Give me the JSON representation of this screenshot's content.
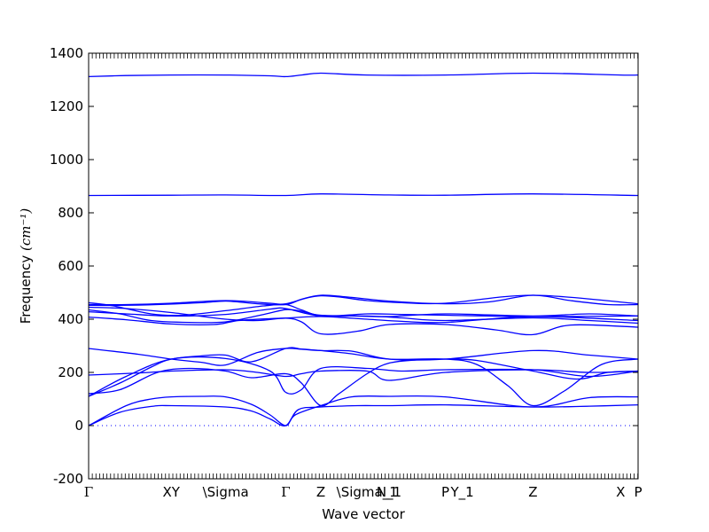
{
  "chart_data": {
    "type": "line",
    "xlabel": "Wave vector",
    "ylabel": "Frequency",
    "ylabel_unit": "(cm⁻¹)",
    "ylim": [
      -200,
      1400
    ],
    "xlim": [
      0,
      8.78
    ],
    "yticks": [
      -200,
      0,
      200,
      400,
      600,
      800,
      1000,
      1200,
      1400
    ],
    "grid": false,
    "legend": "none",
    "line_color": "#0000ff",
    "high_symmetry_points": [
      {
        "label": "Γ",
        "x": 0.0
      },
      {
        "label": "XY",
        "x": 1.32
      },
      {
        "label": "\\Sigma",
        "x": 2.19
      },
      {
        "label": "Γ",
        "x": 3.15
      },
      {
        "label": "Z",
        "x": 3.71
      },
      {
        "label": "\\Sigma_1",
        "x": 4.45
      },
      {
        "label": "N_1",
        "x": 4.8
      },
      {
        "label": "P",
        "x": 5.7
      },
      {
        "label": "Y_1",
        "x": 5.97
      },
      {
        "label": "Z",
        "x": 7.1
      },
      {
        "label": "X",
        "x": 8.5
      },
      {
        "label": "P",
        "x": 8.78
      }
    ],
    "zero_line": {
      "y": 0,
      "style": "dotted"
    },
    "series": [
      {
        "x": [
          0,
          0.6,
          1.3,
          2.2,
          2.9,
          3.15,
          3.4,
          3.71,
          4.45,
          5.7,
          7.1,
          8.5,
          8.78
        ],
        "y": [
          1312,
          1316,
          1318,
          1318,
          1315,
          1312,
          1318,
          1325,
          1318,
          1318,
          1325,
          1318,
          1318
        ]
      },
      {
        "x": [
          0,
          1.32,
          2.19,
          3.15,
          3.71,
          4.8,
          5.7,
          7.1,
          8.78
        ],
        "y": [
          865,
          866,
          867,
          865,
          871,
          867,
          866,
          871,
          865
        ]
      },
      {
        "x": [
          0,
          0.5,
          1.1,
          1.8,
          2.2,
          2.7,
          3.15,
          3.4,
          3.71,
          4.2,
          4.8,
          5.7,
          6.4,
          7.1,
          7.7,
          8.3,
          8.78
        ],
        "y": [
          452,
          452,
          455,
          462,
          468,
          458,
          455,
          475,
          490,
          482,
          468,
          458,
          465,
          490,
          470,
          455,
          455
        ]
      },
      {
        "x": [
          0,
          0.4,
          1.0,
          1.5,
          2.19,
          2.8,
          3.15,
          3.4,
          3.71,
          4.2,
          4.8,
          5.7,
          7.1,
          8.0,
          8.78
        ],
        "y": [
          462,
          450,
          420,
          415,
          432,
          450,
          455,
          435,
          412,
          412,
          410,
          420,
          412,
          420,
          412
        ]
      },
      {
        "x": [
          0,
          0.5,
          1.0,
          1.6,
          2.19,
          2.8,
          3.15,
          3.4,
          3.71,
          4.45,
          5.0,
          5.7,
          7.1,
          8.0,
          8.78
        ],
        "y": [
          435,
          420,
          395,
          388,
          390,
          418,
          436,
          430,
          415,
          412,
          405,
          395,
          405,
          395,
          385
        ]
      },
      {
        "x": [
          0,
          0.6,
          1.32,
          2.0,
          2.4,
          2.9,
          3.15,
          3.71,
          4.45,
          5.0,
          5.7,
          7.1,
          8.78
        ],
        "y": [
          408,
          398,
          382,
          380,
          395,
          402,
          404,
          410,
          400,
          392,
          388,
          410,
          395
        ]
      },
      {
        "x": [
          0,
          0.6,
          1.32,
          2.19,
          2.7,
          3.15,
          3.4,
          3.71,
          4.3,
          4.8,
          5.7,
          6.5,
          7.1,
          7.7,
          8.78
        ],
        "y": [
          445,
          440,
          425,
          400,
          395,
          404,
          390,
          345,
          355,
          380,
          380,
          360,
          342,
          378,
          370
        ]
      },
      {
        "x": [
          0,
          0.8,
          1.32,
          1.8,
          2.19,
          2.7,
          3.15,
          3.4,
          3.71,
          4.2,
          4.8,
          5.7,
          7.1,
          8.0,
          8.78
        ],
        "y": [
          290,
          268,
          250,
          238,
          228,
          275,
          290,
          287,
          282,
          280,
          250,
          250,
          282,
          265,
          250
        ]
      },
      {
        "x": [
          0,
          0.5,
          1.0,
          1.32,
          1.8,
          2.19,
          2.6,
          3.15,
          3.4,
          3.71,
          4.2,
          4.8,
          5.7,
          6.2,
          6.7,
          7.1,
          7.6,
          8.2,
          8.78
        ],
        "y": [
          110,
          160,
          220,
          250,
          262,
          265,
          240,
          290,
          288,
          282,
          270,
          250,
          250,
          230,
          150,
          75,
          130,
          230,
          250
        ]
      },
      {
        "x": [
          0,
          0.5,
          1.1,
          1.6,
          2.19,
          2.6,
          3.15,
          3.4,
          3.71,
          4.0,
          4.45,
          4.8,
          5.3,
          5.7,
          6.2,
          7.1,
          7.8,
          8.3,
          8.78
        ],
        "y": [
          120,
          135,
          200,
          215,
          205,
          180,
          195,
          160,
          75,
          120,
          195,
          235,
          248,
          250,
          245,
          205,
          175,
          200,
          205
        ]
      },
      {
        "x": [
          0,
          0.8,
          1.32,
          2.19,
          2.7,
          3.15,
          3.4,
          3.71,
          4.45,
          4.8,
          5.7,
          7.1,
          8.0,
          8.78
        ],
        "y": [
          190,
          198,
          205,
          210,
          200,
          185,
          195,
          205,
          205,
          170,
          200,
          210,
          200,
          205
        ]
      },
      {
        "x": [
          0,
          0.6,
          1.0,
          1.32,
          1.8,
          2.19,
          2.6,
          2.9,
          3.15,
          3.3,
          3.71,
          4.2,
          4.8,
          5.7,
          7.1,
          8.0,
          8.78
        ],
        "y": [
          0,
          75,
          100,
          108,
          110,
          108,
          80,
          40,
          0,
          40,
          75,
          108,
          110,
          108,
          70,
          105,
          108
        ]
      },
      {
        "x": [
          0,
          0.5,
          1.0,
          1.32,
          2.19,
          2.6,
          2.9,
          3.15,
          3.35,
          3.71,
          4.3,
          4.8,
          5.7,
          7.1,
          8.0,
          8.78
        ],
        "y": [
          0,
          50,
          72,
          75,
          70,
          55,
          25,
          0,
          60,
          70,
          75,
          75,
          78,
          70,
          73,
          78
        ]
      },
      {
        "x": [
          0,
          0.6,
          1.32,
          2.19,
          2.9,
          3.15,
          3.4,
          3.71,
          4.45,
          5.0,
          5.7,
          7.1,
          8.0,
          8.78
        ],
        "y": [
          110,
          185,
          250,
          252,
          205,
          125,
          135,
          215,
          215,
          205,
          210,
          210,
          185,
          205
        ]
      },
      {
        "x": [
          0,
          0.6,
          1.32,
          2.19,
          2.9,
          3.15,
          3.71,
          4.45,
          5.0,
          5.7,
          7.1,
          8.78
        ],
        "y": [
          455,
          455,
          460,
          470,
          460,
          458,
          488,
          470,
          462,
          460,
          490,
          458
        ]
      },
      {
        "x": [
          0,
          0.6,
          1.32,
          2.19,
          2.9,
          3.15,
          3.71,
          4.45,
          5.0,
          5.7,
          7.1,
          8.78
        ],
        "y": [
          428,
          420,
          412,
          418,
          438,
          440,
          412,
          420,
          418,
          415,
          410,
          412
        ]
      }
    ]
  }
}
